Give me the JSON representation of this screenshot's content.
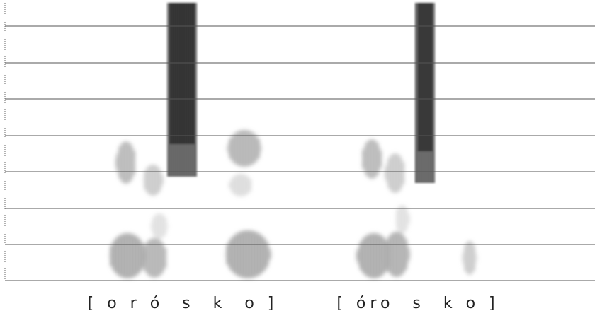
{
  "labels": [
    "[ o r ó  s  k  o ]",
    "[ óro  s  k o ]"
  ]
}
